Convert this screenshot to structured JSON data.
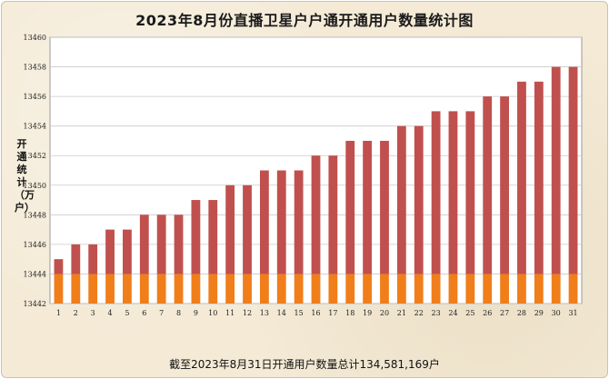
{
  "title": "2023年8月份直播卫星户户通开通用户数量统计图",
  "footer": "截至2023年8月31日开通用户数量总计134,581,169户",
  "colors": {
    "plot_bg": "#ffffff",
    "grid": "#c9c9c9",
    "upper_bar": "#c0504d",
    "lower_bar": "#f07e1b",
    "frame_bg": "#f4ead6"
  },
  "chart_data": {
    "type": "bar",
    "title": "2023年8月份直播卫星户户通开通用户数量统计图",
    "ylabel": "开通统计（万户）",
    "xlabel": "",
    "categories": [
      "1",
      "2",
      "3",
      "4",
      "5",
      "6",
      "7",
      "8",
      "9",
      "10",
      "11",
      "12",
      "13",
      "14",
      "15",
      "16",
      "17",
      "18",
      "19",
      "20",
      "21",
      "22",
      "23",
      "24",
      "25",
      "26",
      "27",
      "28",
      "29",
      "30",
      "31"
    ],
    "values": [
      13445,
      13446,
      13446,
      13447,
      13447,
      13448,
      13448,
      13448,
      13449,
      13449,
      13450,
      13450,
      13451,
      13451,
      13451,
      13452,
      13452,
      13453,
      13453,
      13453,
      13454,
      13454,
      13455,
      13455,
      13455,
      13456,
      13456,
      13457,
      13457,
      13458,
      13458
    ],
    "stacked_base_value": 13444,
    "ylim": [
      13442,
      13460
    ],
    "yticks": [
      13442,
      13444,
      13446,
      13448,
      13450,
      13452,
      13454,
      13456,
      13458,
      13460
    ],
    "grid": true,
    "legend": "none"
  }
}
